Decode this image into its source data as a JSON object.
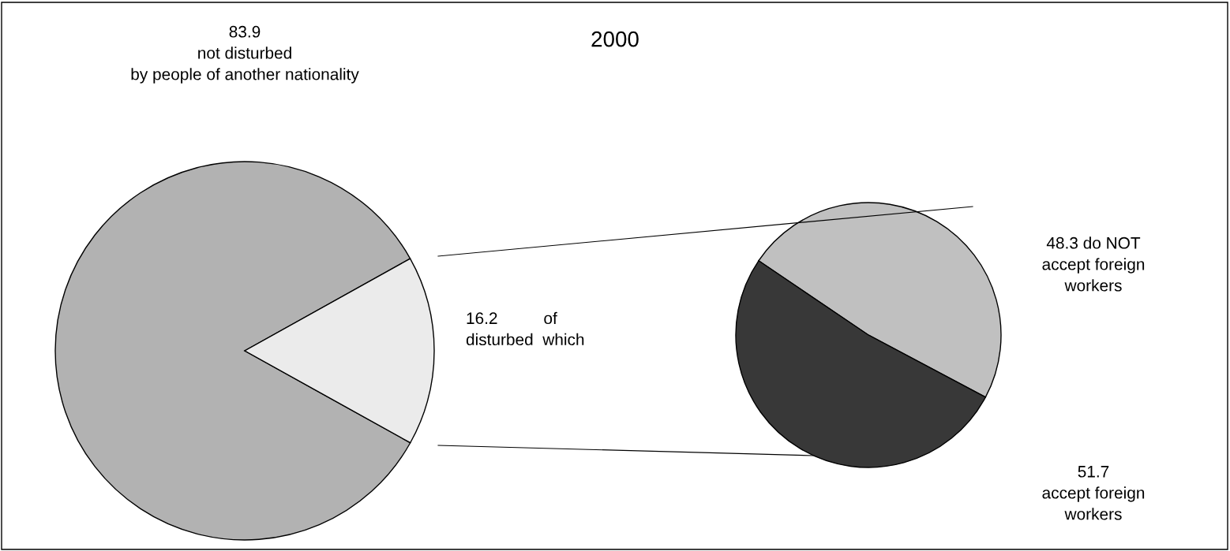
{
  "chart_data": [
    {
      "type": "pie",
      "title": "2000",
      "categories": [
        null,
        null
      ],
      "values": [
        83.9,
        16.2
      ],
      "colors": [
        "#b2b2b2",
        "#ebebeb"
      ],
      "value_labels": [
        "83.9\nnot disturbed\nby people of another nationality",
        "16.2          of\ndisturbed  which"
      ]
    },
    {
      "type": "pie",
      "categories": [
        null,
        null
      ],
      "values": [
        48.3,
        51.7
      ],
      "colors": [
        "#c0c0c0",
        "#383838"
      ],
      "value_labels": [
        "48.3 do NOT\naccept foreign\nworkers",
        "51.7\naccept foreign\nworkers"
      ]
    }
  ]
}
